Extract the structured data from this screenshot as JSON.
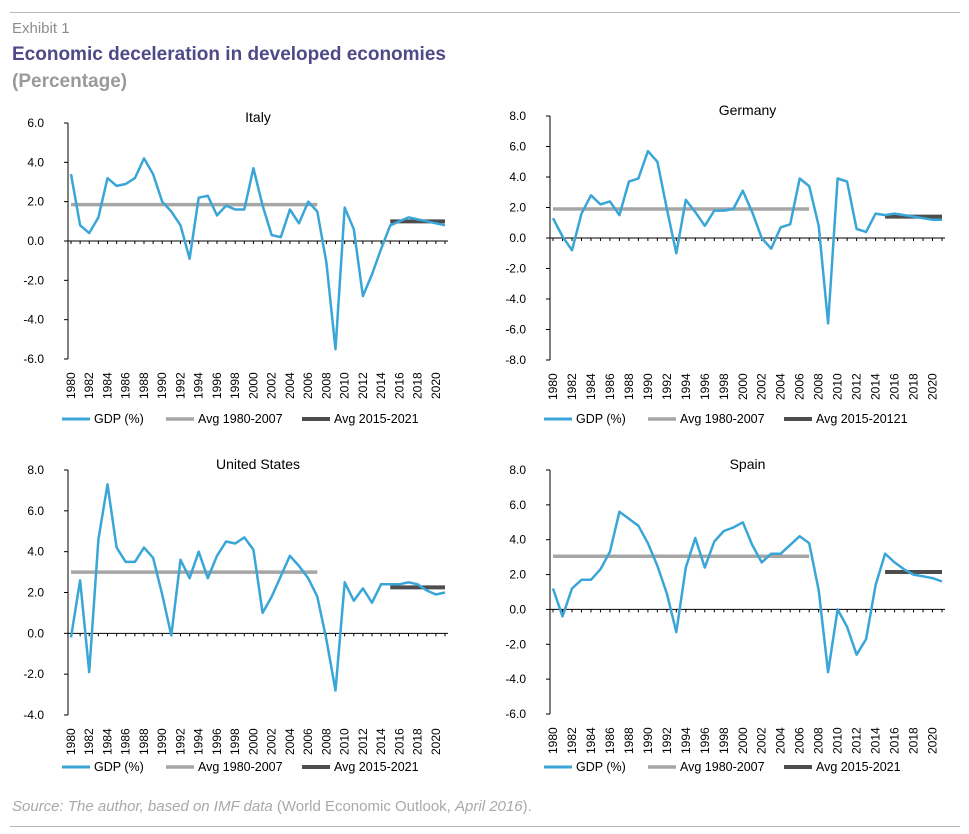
{
  "header": {
    "exhibit": "Exhibit 1",
    "title": "Economic deceleration in developed economies",
    "subtitle": "(Percentage)"
  },
  "source": {
    "italic_part": "Source: The author, based on IMF data",
    "rest_part": " (World Economic Outlook, ",
    "italic_date": "April 2016",
    "end": ")."
  },
  "colors": {
    "gdp": "#3aa6d8",
    "avg_old": "#a6a6a6",
    "avg_new": "#4d4d4d"
  },
  "chart_data": [
    {
      "type": "line",
      "title": "Italy",
      "x_tick_labels": [
        "1980",
        "1982",
        "1984",
        "1986",
        "1988",
        "1990",
        "1992",
        "1994",
        "1996",
        "1998",
        "2000",
        "2002",
        "2004",
        "2006",
        "2008",
        "2010",
        "2012",
        "2014",
        "2016",
        "2018",
        "2020"
      ],
      "y_tick_labels": [
        "6.0",
        "4.0",
        "2.0",
        "0.0",
        "-2.0",
        "-4.0",
        "-6.0"
      ],
      "ylim": [
        -6,
        6
      ],
      "x": [
        1980,
        1981,
        1982,
        1983,
        1984,
        1985,
        1986,
        1987,
        1988,
        1989,
        1990,
        1991,
        1992,
        1993,
        1994,
        1995,
        1996,
        1997,
        1998,
        1999,
        2000,
        2001,
        2002,
        2003,
        2004,
        2005,
        2006,
        2007,
        2008,
        2009,
        2010,
        2011,
        2012,
        2013,
        2014,
        2015,
        2016,
        2017,
        2018,
        2019,
        2020,
        2021
      ],
      "series": [
        {
          "name": "GDP (%)",
          "values": [
            3.4,
            0.8,
            0.4,
            1.2,
            3.2,
            2.8,
            2.9,
            3.2,
            4.2,
            3.4,
            2.0,
            1.5,
            0.8,
            -0.9,
            2.2,
            2.3,
            1.3,
            1.8,
            1.6,
            1.6,
            3.7,
            1.8,
            0.3,
            0.2,
            1.6,
            0.9,
            2.0,
            1.5,
            -1.1,
            -5.5,
            1.7,
            0.6,
            -2.8,
            -1.7,
            -0.4,
            0.8,
            1.0,
            1.2,
            1.1,
            1.0,
            0.9,
            0.8
          ]
        },
        {
          "name": "Avg 1980-2007",
          "x_range": [
            1980,
            2007
          ],
          "value": 1.85
        },
        {
          "name": "Avg 2015-2021",
          "x_range": [
            2015,
            2021
          ],
          "value": 1.0
        }
      ],
      "legend": [
        "GDP (%)",
        "Avg 1980-2007",
        "Avg 2015-2021"
      ]
    },
    {
      "type": "line",
      "title": "Germany",
      "x_tick_labels": [
        "1980",
        "1982",
        "1984",
        "1986",
        "1988",
        "1990",
        "1992",
        "1994",
        "1996",
        "1998",
        "2000",
        "2002",
        "2004",
        "2006",
        "2008",
        "2010",
        "2012",
        "2014",
        "2016",
        "2018",
        "2020"
      ],
      "y_tick_labels": [
        "8.0",
        "6.0",
        "4.0",
        "2.0",
        "0.0",
        "-2.0",
        "-4.0",
        "-6.0",
        "-8.0"
      ],
      "ylim": [
        -8,
        8
      ],
      "x": [
        1980,
        1981,
        1982,
        1983,
        1984,
        1985,
        1986,
        1987,
        1988,
        1989,
        1990,
        1991,
        1992,
        1993,
        1994,
        1995,
        1996,
        1997,
        1998,
        1999,
        2000,
        2001,
        2002,
        2003,
        2004,
        2005,
        2006,
        2007,
        2008,
        2009,
        2010,
        2011,
        2012,
        2013,
        2014,
        2015,
        2016,
        2017,
        2018,
        2019,
        2020,
        2021
      ],
      "series": [
        {
          "name": "GDP (%)",
          "values": [
            1.3,
            0.1,
            -0.8,
            1.6,
            2.8,
            2.2,
            2.4,
            1.5,
            3.7,
            3.9,
            5.7,
            5.0,
            1.9,
            -1.0,
            2.5,
            1.7,
            0.8,
            1.8,
            1.8,
            1.9,
            3.1,
            1.7,
            0.0,
            -0.7,
            0.7,
            0.9,
            3.9,
            3.4,
            0.8,
            -5.6,
            3.9,
            3.7,
            0.6,
            0.4,
            1.6,
            1.5,
            1.6,
            1.5,
            1.4,
            1.3,
            1.2,
            1.2
          ]
        },
        {
          "name": "Avg 1980-2007",
          "x_range": [
            1980,
            2007
          ],
          "value": 1.9
        },
        {
          "name": "Avg 2015-20121",
          "x_range": [
            2015,
            2021
          ],
          "value": 1.4
        }
      ],
      "legend": [
        "GDP (%)",
        "Avg 1980-2007",
        "Avg 2015-20121"
      ]
    },
    {
      "type": "line",
      "title": "United States",
      "x_tick_labels": [
        "1980",
        "1982",
        "1984",
        "1986",
        "1988",
        "1990",
        "1992",
        "1994",
        "1996",
        "1998",
        "2000",
        "2002",
        "2004",
        "2006",
        "2008",
        "2010",
        "2012",
        "2014",
        "2016",
        "2018",
        "2020"
      ],
      "y_tick_labels": [
        "8.0",
        "6.0",
        "4.0",
        "2.0",
        "0.0",
        "-2.0",
        "-4.0"
      ],
      "ylim": [
        -4,
        8
      ],
      "x": [
        1980,
        1981,
        1982,
        1983,
        1984,
        1985,
        1986,
        1987,
        1988,
        1989,
        1990,
        1991,
        1992,
        1993,
        1994,
        1995,
        1996,
        1997,
        1998,
        1999,
        2000,
        2001,
        2002,
        2003,
        2004,
        2005,
        2006,
        2007,
        2008,
        2009,
        2010,
        2011,
        2012,
        2013,
        2014,
        2015,
        2016,
        2017,
        2018,
        2019,
        2020,
        2021
      ],
      "series": [
        {
          "name": "GDP (%)",
          "values": [
            -0.2,
            2.6,
            -1.9,
            4.6,
            7.3,
            4.2,
            3.5,
            3.5,
            4.2,
            3.7,
            1.9,
            -0.1,
            3.6,
            2.7,
            4.0,
            2.7,
            3.8,
            4.5,
            4.4,
            4.7,
            4.1,
            1.0,
            1.8,
            2.8,
            3.8,
            3.3,
            2.7,
            1.8,
            -0.3,
            -2.8,
            2.5,
            1.6,
            2.2,
            1.5,
            2.4,
            2.4,
            2.4,
            2.5,
            2.4,
            2.1,
            1.9,
            2.0
          ]
        },
        {
          "name": "Avg 1980-2007",
          "x_range": [
            1980,
            2007
          ],
          "value": 3.0
        },
        {
          "name": "Avg 2015-2021",
          "x_range": [
            2015,
            2021
          ],
          "value": 2.25
        }
      ],
      "legend": [
        "GDP (%)",
        "Avg 1980-2007",
        "Avg 2015-2021"
      ]
    },
    {
      "type": "line",
      "title": "Spain",
      "x_tick_labels": [
        "1980",
        "1982",
        "1984",
        "1986",
        "1988",
        "1990",
        "1992",
        "1994",
        "1996",
        "1998",
        "2000",
        "2002",
        "2004",
        "2006",
        "2008",
        "2010",
        "2012",
        "2014",
        "2016",
        "2018",
        "2020"
      ],
      "y_tick_labels": [
        "8.0",
        "6.0",
        "4.0",
        "2.0",
        "0.0",
        "-2.0",
        "-4.0",
        "-6.0"
      ],
      "ylim": [
        -6,
        8
      ],
      "x": [
        1980,
        1981,
        1982,
        1983,
        1984,
        1985,
        1986,
        1987,
        1988,
        1989,
        1990,
        1991,
        1992,
        1993,
        1994,
        1995,
        1996,
        1997,
        1998,
        1999,
        2000,
        2001,
        2002,
        2003,
        2004,
        2005,
        2006,
        2007,
        2008,
        2009,
        2010,
        2011,
        2012,
        2013,
        2014,
        2015,
        2016,
        2017,
        2018,
        2019,
        2020,
        2021
      ],
      "series": [
        {
          "name": "GDP (%)",
          "values": [
            1.2,
            -0.4,
            1.2,
            1.7,
            1.7,
            2.3,
            3.3,
            5.6,
            5.2,
            4.8,
            3.8,
            2.5,
            0.9,
            -1.3,
            2.4,
            4.1,
            2.4,
            3.9,
            4.5,
            4.7,
            5.0,
            3.7,
            2.7,
            3.2,
            3.2,
            3.7,
            4.2,
            3.8,
            1.1,
            -3.6,
            0.0,
            -1.0,
            -2.6,
            -1.7,
            1.4,
            3.2,
            2.7,
            2.3,
            2.0,
            1.9,
            1.8,
            1.6
          ]
        },
        {
          "name": "Avg 1980-2007",
          "x_range": [
            1980,
            2007
          ],
          "value": 3.05
        },
        {
          "name": "Avg 2015-2021",
          "x_range": [
            2015,
            2021
          ],
          "value": 2.15
        }
      ],
      "legend": [
        "GDP (%)",
        "Avg 1980-2007",
        "Avg 2015-2021"
      ]
    }
  ]
}
